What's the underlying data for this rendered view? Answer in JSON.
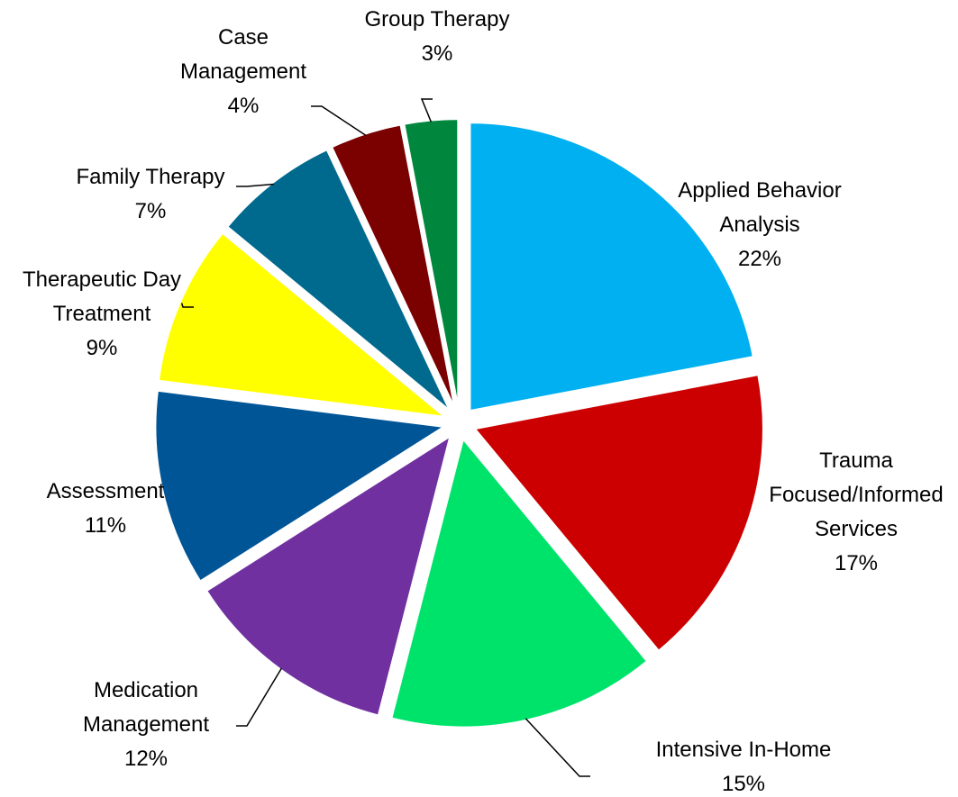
{
  "chart_data": {
    "type": "pie",
    "categories": [
      "Applied Behavior Analysis",
      "Trauma Focused/Informed Services",
      "Intensive In-Home",
      "Medication Management",
      "Assessment",
      "Therapeutic Day Treatment",
      "Family Therapy",
      "Case Management",
      "Group Therapy"
    ],
    "values": [
      22,
      17,
      15,
      12,
      11,
      9,
      7,
      4,
      3
    ],
    "value_labels": [
      "22%",
      "17%",
      "15%",
      "12%",
      "11%",
      "9%",
      "7%",
      "4%",
      "3%"
    ],
    "colors": [
      "#00b0f0",
      "#cc0000",
      "#00e36b",
      "#7030a0",
      "#005597",
      "#ffff00",
      "#006a8e",
      "#7b0000",
      "#00873d"
    ]
  }
}
